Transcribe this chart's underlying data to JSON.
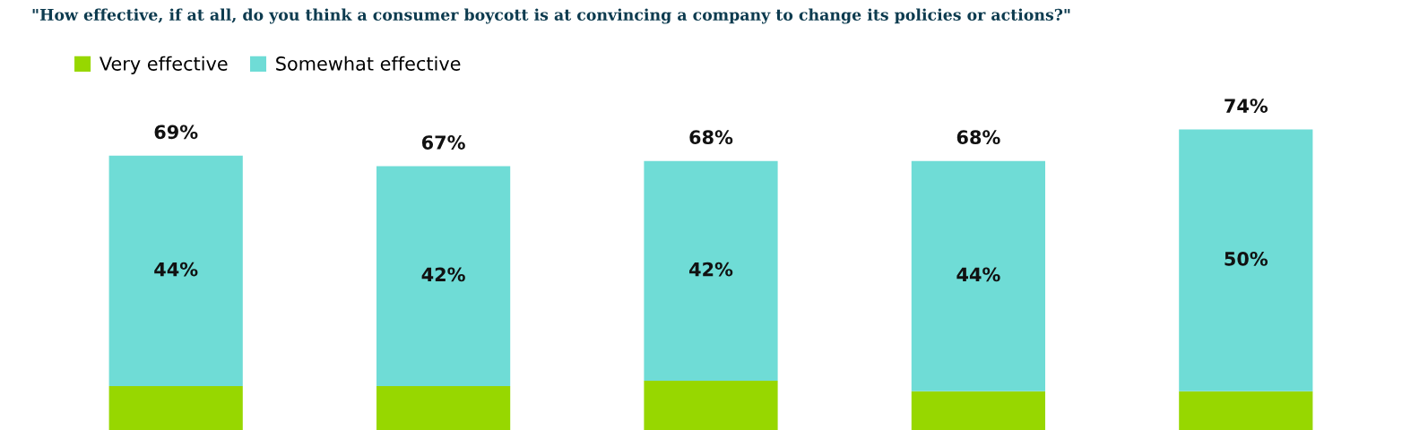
{
  "chart_data": {
    "type": "bar",
    "stacked": true,
    "title": "\"How effective, if at all, do you think a consumer boycott is at convincing a company to change its policies or actions?\"",
    "categories": [
      null,
      null,
      null,
      null,
      null
    ],
    "series": [
      {
        "name": "Very effective",
        "color": "#97d700",
        "values": [
          25,
          25,
          26,
          24,
          24
        ],
        "value_labels": [
          null,
          null,
          null,
          null,
          null
        ]
      },
      {
        "name": "Somewhat effective",
        "color": "#6fdcd6",
        "values": [
          44,
          42,
          42,
          44,
          50
        ],
        "value_labels": [
          "44%",
          "42%",
          "42%",
          "44%",
          "50%"
        ]
      }
    ],
    "totals": [
      "69%",
      "67%",
      "68%",
      "68%",
      "74%"
    ],
    "tick_labels": false,
    "grid": false,
    "legend": "top left"
  }
}
